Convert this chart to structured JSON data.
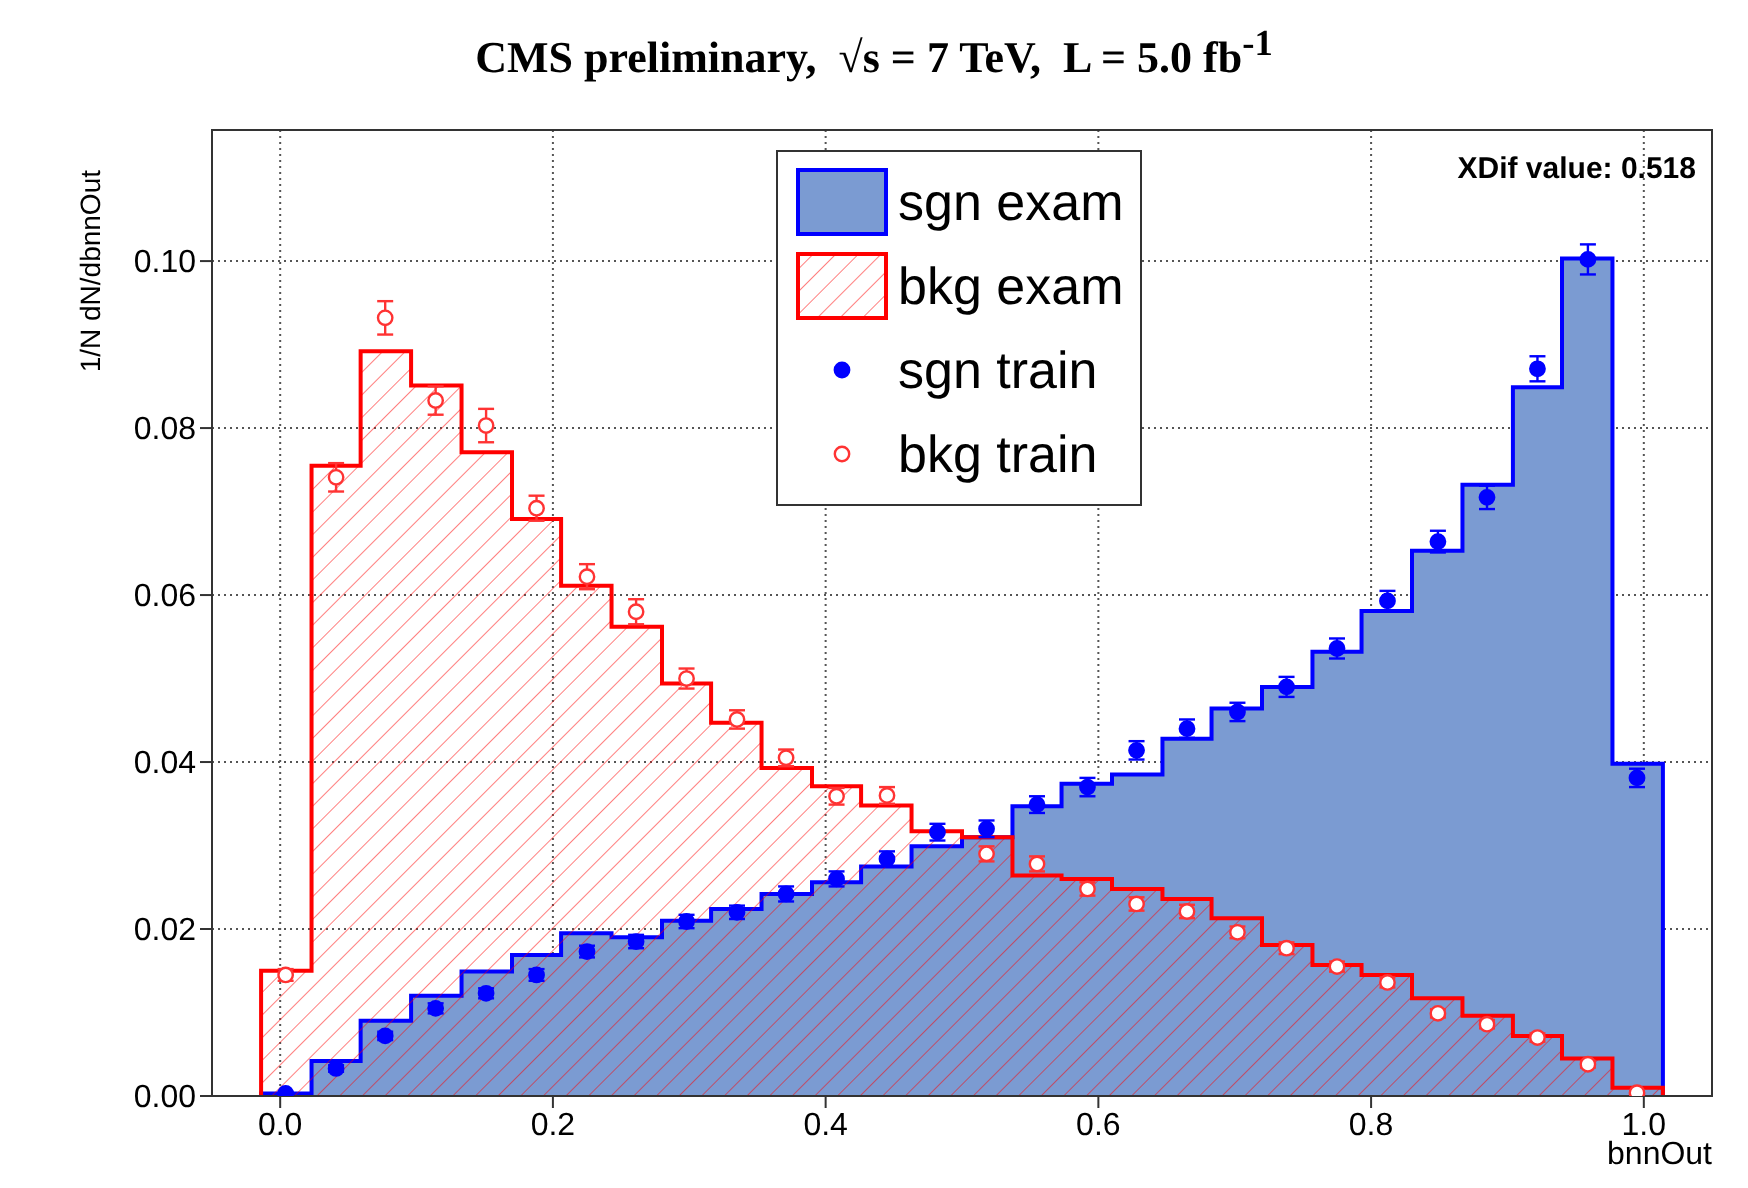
{
  "chart_data": {
    "type": "histogram",
    "title": "CMS preliminary,  √s = 7 TeV,  L = 5.0 fb$^{-1}$",
    "xlabel": "bnnOut",
    "ylabel": "1/N dN/dbnnOut",
    "annotations": [
      "XDif value: 0.518"
    ],
    "bins": [
      -0.014,
      0.023,
      0.059,
      0.096,
      0.133,
      0.17,
      0.206,
      0.243,
      0.28,
      0.316,
      0.353,
      0.39,
      0.426,
      0.463,
      0.5,
      0.537,
      0.573,
      0.61,
      0.647,
      0.683,
      0.72,
      0.757,
      0.793,
      0.83,
      0.867,
      0.904,
      0.94,
      0.977,
      1.014
    ],
    "series": [
      {
        "name": "sgn exam",
        "color": "#7b9bd2",
        "values": [
          0.0003,
          0.0042,
          0.009,
          0.012,
          0.0149,
          0.0169,
          0.0195,
          0.019,
          0.021,
          0.0224,
          0.0242,
          0.0256,
          0.0275,
          0.0299,
          0.031,
          0.0347,
          0.0374,
          0.0385,
          0.0428,
          0.0464,
          0.049,
          0.0532,
          0.0581,
          0.0653,
          0.0732,
          0.0849,
          0.1003,
          0.0398
        ]
      },
      {
        "name": "bkg exam",
        "color": "#ff0000",
        "values": [
          0.015,
          0.0755,
          0.0892,
          0.0851,
          0.0771,
          0.0691,
          0.0611,
          0.0562,
          0.0494,
          0.0447,
          0.0393,
          0.0371,
          0.0348,
          0.0317,
          0.031,
          0.0264,
          0.026,
          0.0248,
          0.0236,
          0.0213,
          0.0181,
          0.0157,
          0.0145,
          0.0117,
          0.0096,
          0.0072,
          0.0045,
          0.001
        ]
      },
      {
        "name": "sgn train",
        "type": "scatter",
        "marker": "circle",
        "color": "#0000ff",
        "x": [
          0.004,
          0.041,
          0.077,
          0.114,
          0.151,
          0.188,
          0.225,
          0.261,
          0.298,
          0.335,
          0.371,
          0.408,
          0.445,
          0.482,
          0.518,
          0.555,
          0.592,
          0.628,
          0.665,
          0.702,
          0.738,
          0.775,
          0.812,
          0.849,
          0.885,
          0.922,
          0.959,
          0.995
        ],
        "values": [
          0.0003,
          0.0033,
          0.0072,
          0.0105,
          0.0123,
          0.0145,
          0.0173,
          0.0185,
          0.0209,
          0.022,
          0.0242,
          0.026,
          0.0284,
          0.0316,
          0.032,
          0.0349,
          0.037,
          0.0414,
          0.044,
          0.046,
          0.049,
          0.0536,
          0.0593,
          0.0664,
          0.0717,
          0.0871,
          0.1002,
          0.0381
        ],
        "errors": [
          0.0002,
          0.0004,
          0.0005,
          0.0006,
          0.0006,
          0.0007,
          0.0007,
          0.0008,
          0.0008,
          0.0008,
          0.0009,
          0.0009,
          0.0009,
          0.001,
          0.001,
          0.001,
          0.0011,
          0.0011,
          0.0011,
          0.0011,
          0.0012,
          0.0012,
          0.0012,
          0.0013,
          0.0014,
          0.0015,
          0.0018,
          0.0011
        ]
      },
      {
        "name": "bkg train",
        "type": "scatter",
        "marker": "circle",
        "color": "#ff3333",
        "x": [
          0.004,
          0.041,
          0.077,
          0.114,
          0.151,
          0.188,
          0.225,
          0.261,
          0.298,
          0.335,
          0.371,
          0.408,
          0.445,
          0.482,
          0.518,
          0.555,
          0.592,
          0.628,
          0.665,
          0.702,
          0.738,
          0.775,
          0.812,
          0.849,
          0.885,
          0.922,
          0.959,
          0.995
        ],
        "values": [
          0.0145,
          0.0741,
          0.0932,
          0.0833,
          0.0803,
          0.0704,
          0.0622,
          0.058,
          0.05,
          0.0451,
          0.0405,
          0.0359,
          0.036,
          null,
          0.029,
          0.0278,
          0.0248,
          0.023,
          0.0221,
          0.0196,
          0.0177,
          0.0155,
          0.0136,
          0.0099,
          0.0086,
          0.007,
          0.0038,
          0.0004
        ],
        "errors": [
          0.0007,
          0.0017,
          0.002,
          0.0017,
          0.002,
          0.0015,
          0.0015,
          0.0015,
          0.0012,
          0.0011,
          0.001,
          0.001,
          0.001,
          null,
          0.0009,
          0.0009,
          0.0008,
          0.0008,
          0.0008,
          0.0007,
          0.0007,
          0.0006,
          0.0006,
          0.0005,
          0.0005,
          0.0005,
          0.0004,
          0.0002
        ]
      }
    ],
    "xlim": [
      -0.05,
      1.05
    ],
    "xticks": [
      {
        "value": 0,
        "label": "0.0"
      },
      0.2,
      0.4,
      0.6,
      0.8,
      {
        "value": 1,
        "label": "1.0"
      }
    ],
    "ylim": [
      0,
      0.1157
    ],
    "yticks": [
      {
        "value": 0,
        "label": "0.00"
      },
      0.02,
      0.04,
      0.06,
      0.08,
      {
        "value": 0.1,
        "label": "0.10"
      }
    ],
    "grid": true,
    "legend": "top"
  }
}
